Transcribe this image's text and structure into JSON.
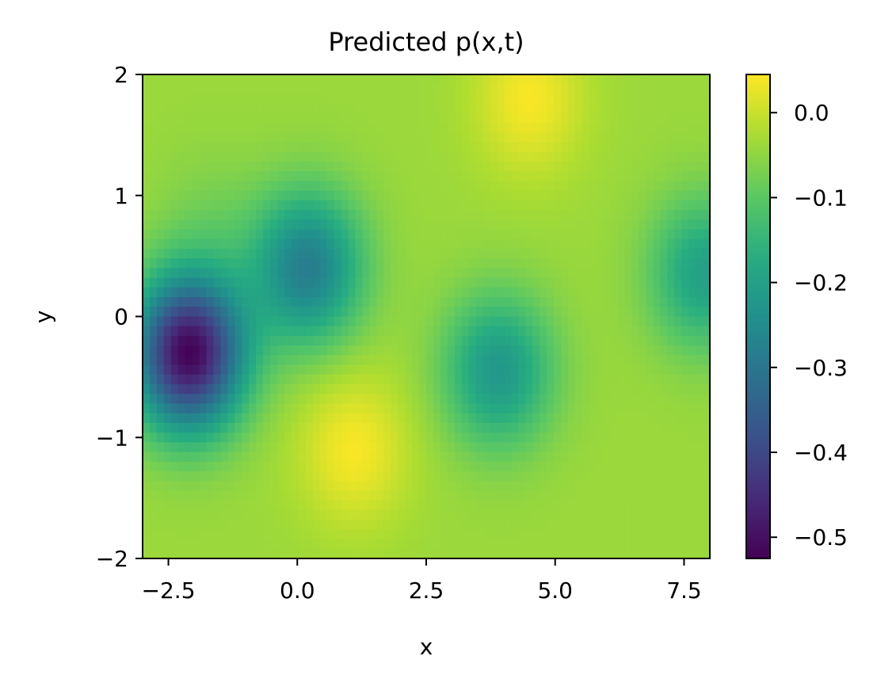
{
  "chart_data": {
    "type": "heatmap",
    "title": "Predicted p(x,t)",
    "xlabel": "x",
    "ylabel": "y",
    "xlim": [
      -3,
      8
    ],
    "ylim": [
      -2,
      2
    ],
    "x_ticks": [
      "−2.5",
      "0.0",
      "2.5",
      "5.0",
      "7.5"
    ],
    "x_tick_values": [
      -2.5,
      0.0,
      2.5,
      5.0,
      7.5
    ],
    "y_ticks": [
      "−2",
      "−1",
      "0",
      "1",
      "2"
    ],
    "y_tick_values": [
      -2,
      -1,
      0,
      1,
      2
    ],
    "colormap": "viridis",
    "colorbar": {
      "range": [
        -0.525,
        0.045
      ],
      "ticks": [
        "−0.5",
        "−0.4",
        "−0.3",
        "−0.2",
        "−0.1",
        "0.0"
      ],
      "tick_values": [
        -0.5,
        -0.4,
        -0.3,
        -0.2,
        -0.1,
        0.0
      ]
    },
    "grid_resolution": [
      80,
      50
    ],
    "field_features": [
      {
        "x": -2.1,
        "y": -0.3,
        "value": -0.52
      },
      {
        "x": 0.2,
        "y": 0.4,
        "value": -0.28
      },
      {
        "x": 3.9,
        "y": -0.45,
        "value": -0.22
      },
      {
        "x": 7.9,
        "y": 0.35,
        "value": -0.2
      },
      {
        "x": -1.7,
        "y": 0.75,
        "value": -0.07
      },
      {
        "x": 1.1,
        "y": -1.1,
        "value": 0.04
      },
      {
        "x": 4.5,
        "y": 1.8,
        "value": 0.04
      }
    ],
    "base_value": -0.04,
    "grid": false
  }
}
